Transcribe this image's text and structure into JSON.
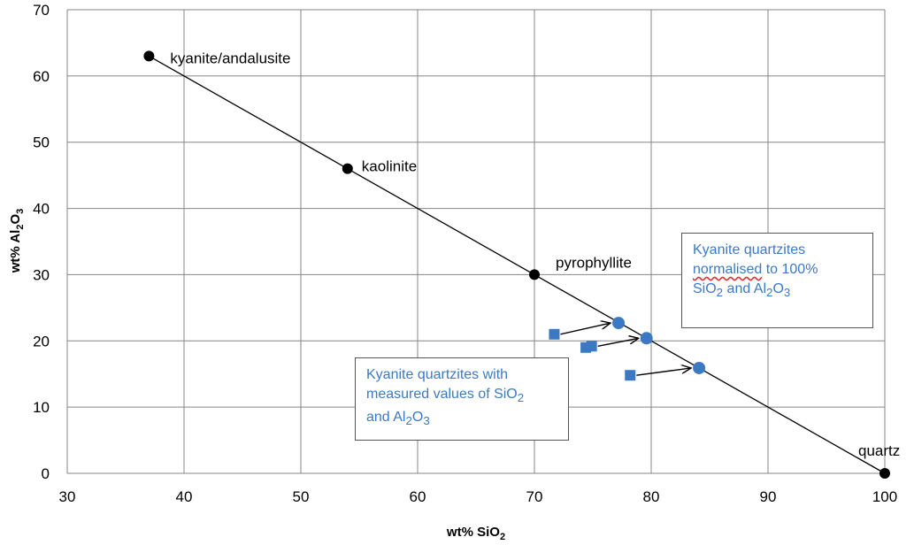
{
  "chart_data": {
    "type": "scatter",
    "xlabel": "wt% SiO",
    "xlabel_sub": "2",
    "ylabel_main": "wt% Al",
    "ylabel_sub1": "2",
    "ylabel_mid": "O",
    "ylabel_sub2": "3",
    "xlim": [
      30,
      100
    ],
    "ylim": [
      0,
      70
    ],
    "xticks": [
      "30",
      "40",
      "50",
      "60",
      "70",
      "80",
      "90",
      "100"
    ],
    "yticks": [
      "0",
      "10",
      "20",
      "30",
      "40",
      "50",
      "60",
      "70"
    ],
    "grid": true,
    "mineral_line": {
      "x1": 37,
      "y1": 63,
      "x2": 100,
      "y2": 0
    },
    "minerals": [
      {
        "name": "kyanite/andalusite",
        "x": 37,
        "y": 63
      },
      {
        "name": "kaolinite",
        "x": 54,
        "y": 46
      },
      {
        "name": "pyrophyllite",
        "x": 70,
        "y": 30
      },
      {
        "name": "quartz",
        "x": 100,
        "y": 0
      }
    ],
    "measured": [
      {
        "x": 71.7,
        "y": 21.0
      },
      {
        "x": 74.4,
        "y": 19.0
      },
      {
        "x": 74.9,
        "y": 19.2
      },
      {
        "x": 78.2,
        "y": 14.8
      }
    ],
    "normalised": [
      {
        "x": 77.2,
        "y": 22.7
      },
      {
        "x": 79.6,
        "y": 20.4
      },
      {
        "x": 84.1,
        "y": 15.9
      }
    ],
    "arrows": [
      {
        "from": [
          71.7,
          21.0
        ],
        "to": [
          77.2,
          22.7
        ]
      },
      {
        "from": [
          74.9,
          19.2
        ],
        "to": [
          79.6,
          20.4
        ]
      },
      {
        "from": [
          78.2,
          14.8
        ],
        "to": [
          84.1,
          15.9
        ]
      }
    ],
    "colors": {
      "mineral": "#000000",
      "data": "#3c79c3",
      "grid": "#868686",
      "callout_text": "#3c79c3"
    }
  },
  "callouts": {
    "measured": {
      "line1": "Kyanite quartzites with",
      "line2_pre": "measured values of SiO",
      "line2_sub": "2",
      "line3_pre": "and Al",
      "line3_sub1": "2",
      "line3_mid": "O",
      "line3_sub2": "3"
    },
    "normalised": {
      "line1": "Kyanite quartzites",
      "line2_wavy": "normalised",
      "line2_rest": " to 100%",
      "line3_pre": "SiO",
      "line3_sub1": "2",
      "line3_mid": " and Al",
      "line3_sub2": "2",
      "line3_mid2": "O",
      "line3_sub3": "3"
    }
  }
}
